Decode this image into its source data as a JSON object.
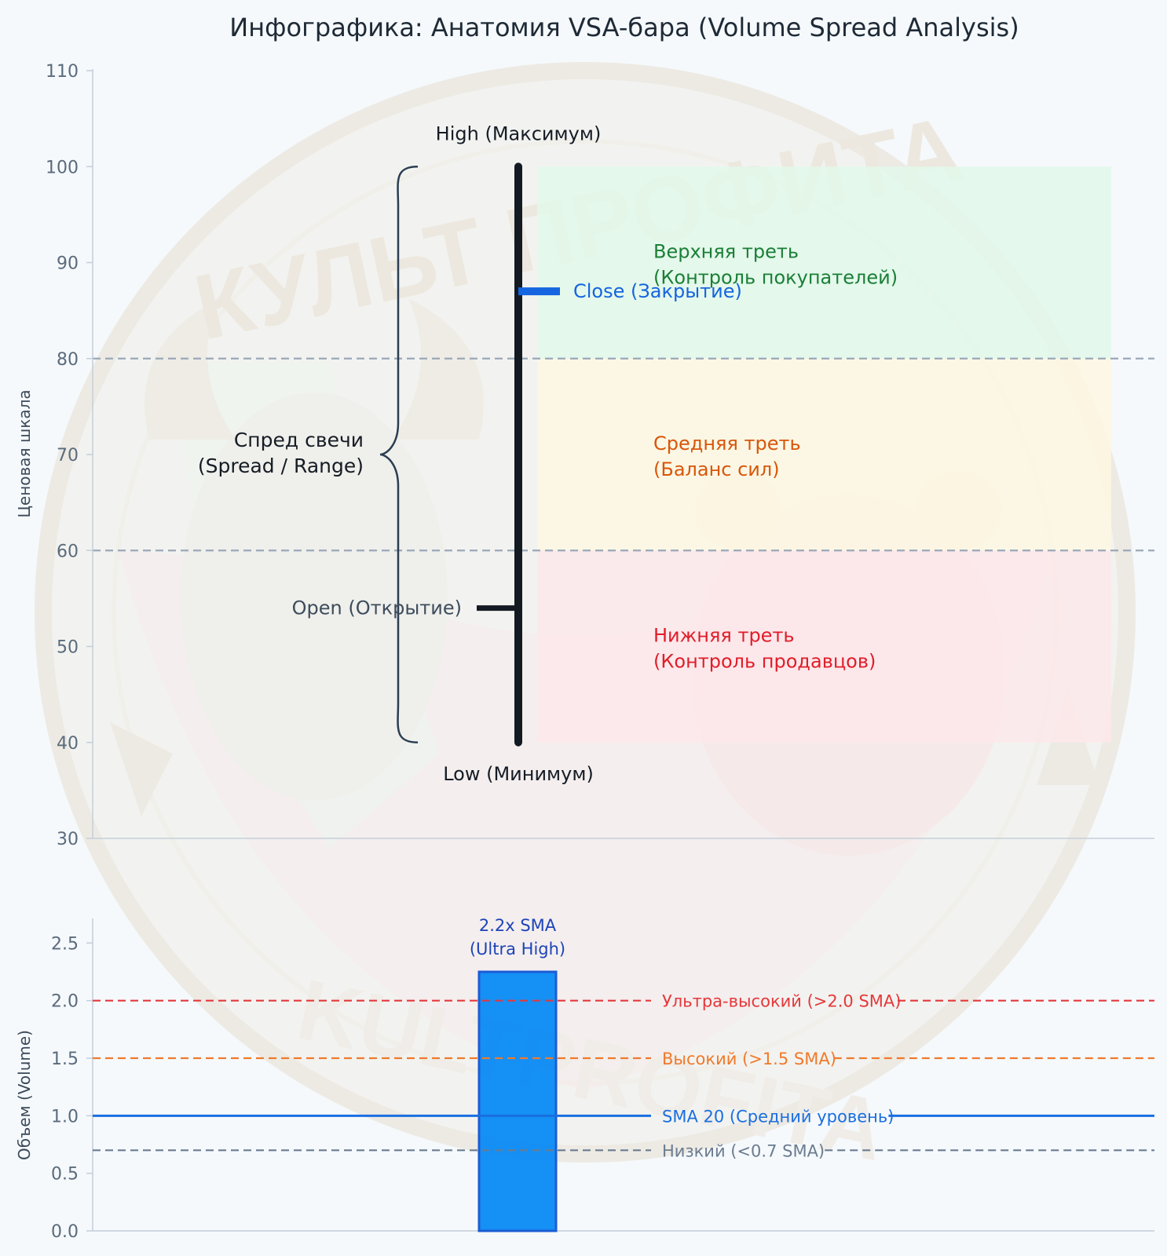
{
  "title": "Инфографика: Анатомия VSA-бара (Volume Spread Analysis)",
  "watermark": {
    "text_top": "КУЛЬТ ПРОФИТА",
    "text_bottom": "KULTPROFITA",
    "icon": "bull-bear-emblem-icon"
  },
  "colors": {
    "bar": "#141a22",
    "close": "#1565e0",
    "upper_zone": "#e2f8ea",
    "middle_zone": "#fdf7e2",
    "lower_zone": "#fde8ea",
    "upper_text": "#1a7f37",
    "middle_text": "#d9560a",
    "lower_text": "#e11d2a",
    "volume_bar": "#0a8bf5",
    "volume_bar_edge": "#1155d4",
    "ultra_line": "#e5383b",
    "high_line": "#f07a2b",
    "sma_line": "#1a6fe0",
    "low_line": "#6b7c90",
    "gridline": "#9aa8b8"
  },
  "chart_data": [
    {
      "type": "candlestick",
      "ylabel": "Ценовая шкала",
      "ylim": [
        30,
        110
      ],
      "yticks": [
        "30",
        "40",
        "50",
        "60",
        "70",
        "80",
        "90",
        "100",
        "110"
      ],
      "bar": {
        "open": 54,
        "high": 100,
        "low": 40,
        "close": 87
      },
      "labels": {
        "high": "High (Максимум)",
        "low": "Low (Минимум)",
        "open": "Open (Открытие)",
        "close": "Close (Закрытие)",
        "spread_line1": "Спред свечи",
        "spread_line2": "(Spread / Range)"
      },
      "zones": [
        {
          "from": 80,
          "to": 100,
          "line1": "Верхняя треть",
          "line2": "(Контроль покупателей)",
          "color_key": "upper"
        },
        {
          "from": 60,
          "to": 80,
          "line1": "Средняя треть",
          "line2": "(Баланс сил)",
          "color_key": "middle"
        },
        {
          "from": 40,
          "to": 60,
          "line1": "Нижняя треть",
          "line2": "(Контроль продавцов)",
          "color_key": "lower"
        }
      ],
      "reference_lines": [
        80,
        60
      ]
    },
    {
      "type": "bar",
      "ylabel": "Объем (Volume)",
      "ylim": [
        0,
        2.7
      ],
      "yticks": [
        "0.0",
        "0.5",
        "1.0",
        "1.5",
        "2.0",
        "2.5"
      ],
      "value": 2.25,
      "annotation_line1": "2.2x SMA",
      "annotation_line2": "(Ultra High)",
      "levels": [
        {
          "value": 2.0,
          "label": "Ультра-высокий (>2.0 SMA)",
          "style": "dashed",
          "color_key": "ultra"
        },
        {
          "value": 1.5,
          "label": "Высокий (>1.5 SMA)",
          "style": "dashed",
          "color_key": "high"
        },
        {
          "value": 1.0,
          "label": "SMA 20 (Средний уровень)",
          "style": "solid",
          "color_key": "sma"
        },
        {
          "value": 0.7,
          "label": "Низкий (<0.7 SMA)",
          "style": "dashed",
          "color_key": "low"
        }
      ]
    }
  ]
}
